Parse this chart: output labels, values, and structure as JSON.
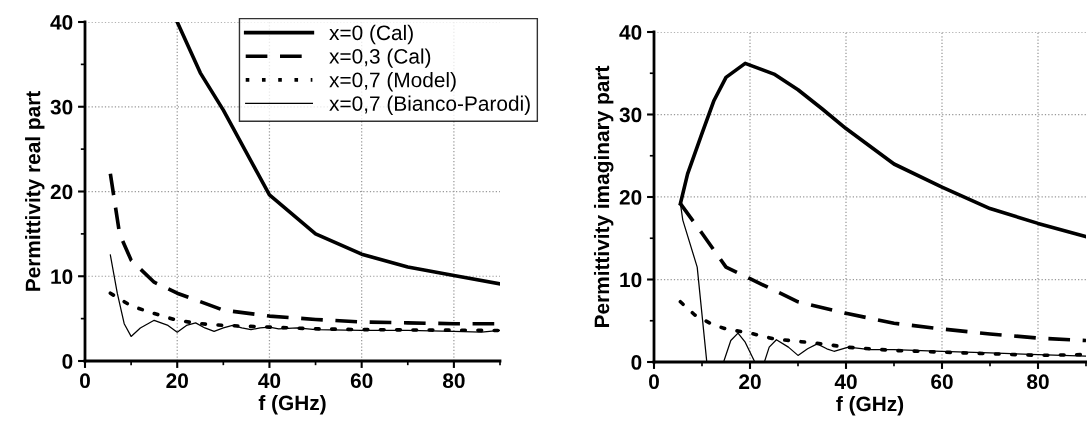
{
  "chart_data": [
    {
      "type": "line",
      "xlabel": "f (GHz)",
      "ylabel": "Permittivity real part",
      "xlim": [
        0,
        90
      ],
      "ylim": [
        0,
        40
      ],
      "xticks": [
        0,
        20,
        40,
        60,
        80
      ],
      "yticks": [
        0,
        10,
        20,
        30,
        40
      ],
      "grid": true,
      "legend": "top right",
      "marker": "none",
      "series": [
        {
          "name": "x=0 (Cal)",
          "color": "#000000",
          "line_style": "solid",
          "x": [
            20,
            25,
            30,
            40,
            50,
            60,
            70,
            80,
            90
          ],
          "values": [
            40,
            34,
            29.6,
            19.6,
            15,
            12.6,
            11.1,
            10.1,
            9.1
          ]
        },
        {
          "name": "x=0,3 (Cal)",
          "color": "#000000",
          "line_style": "dashed",
          "x": [
            5.5,
            7.5,
            10,
            15,
            20,
            30,
            40,
            50,
            60,
            70,
            80,
            90
          ],
          "values": [
            22.1,
            15,
            11.9,
            9.3,
            8.0,
            6.0,
            5.3,
            4.9,
            4.6,
            4.5,
            4.4,
            4.4
          ]
        },
        {
          "name": "x=0,7 (Model)",
          "color": "#000000",
          "line_style": "dotted",
          "x": [
            5.5,
            10,
            15,
            20,
            25,
            30,
            40,
            50,
            60,
            90
          ],
          "values": [
            8.0,
            6.5,
            5.6,
            4.8,
            4.4,
            4.2,
            4.0,
            3.8,
            3.7,
            3.6
          ]
        },
        {
          "name": "x=0,7 (Bianco-Parodi)",
          "color": "#000000",
          "line_style": "solid",
          "x": [
            5.5,
            7,
            8.5,
            10,
            12,
            15,
            18,
            20,
            22,
            24,
            26,
            28,
            30,
            32,
            34,
            36,
            38,
            40,
            42,
            46,
            50,
            60,
            70,
            80,
            86,
            90
          ],
          "values": [
            12.5,
            8,
            4.4,
            2.9,
            3.9,
            4.8,
            4.2,
            3.4,
            4.2,
            4.5,
            3.9,
            3.5,
            3.9,
            4.2,
            3.9,
            3.7,
            3.9,
            4.0,
            3.8,
            3.9,
            3.7,
            3.6,
            3.6,
            3.5,
            3.4,
            3.6
          ]
        }
      ]
    },
    {
      "type": "line",
      "xlabel": "f (GHz)",
      "ylabel": "Permittivity imaginary part",
      "xlim": [
        0,
        90
      ],
      "ylim": [
        0,
        40
      ],
      "xticks": [
        0,
        20,
        40,
        60,
        80
      ],
      "yticks": [
        0,
        10,
        20,
        30,
        40
      ],
      "grid": true,
      "marker": "none",
      "series": [
        {
          "color": "#000000",
          "line_style": "solid",
          "x": [
            5.5,
            7,
            10,
            12.5,
            15,
            19,
            25,
            30,
            35,
            40,
            50,
            60,
            70,
            80,
            90
          ],
          "values": [
            19.2,
            22.8,
            27.7,
            31.7,
            34.5,
            36.2,
            34.9,
            33.0,
            30.7,
            28.3,
            24.0,
            21.2,
            18.6,
            16.8,
            15.2
          ]
        },
        {
          "color": "#000000",
          "line_style": "dashed",
          "x": [
            5.5,
            10,
            15,
            20,
            30,
            40,
            50,
            60,
            70,
            80,
            90
          ],
          "values": [
            19.2,
            15.6,
            11.5,
            10.1,
            7.3,
            5.9,
            4.7,
            4.0,
            3.4,
            2.9,
            2.6
          ]
        },
        {
          "color": "#000000",
          "line_style": "dotted",
          "x": [
            5.5,
            8.5,
            12,
            15,
            20,
            25,
            30,
            35,
            40,
            50,
            60,
            70,
            80,
            90
          ],
          "values": [
            7.3,
            5.7,
            4.6,
            4.0,
            3.5,
            2.8,
            2.5,
            2.2,
            1.8,
            1.4,
            1.2,
            1.0,
            0.8,
            0.9
          ]
        },
        {
          "color": "#000000",
          "line_style": "solid",
          "x": [
            5.5,
            6,
            9,
            11,
            12.5,
            14.5,
            16,
            17.5,
            19,
            21,
            22,
            23,
            24,
            25.5,
            28,
            30,
            32,
            34,
            36,
            37.5,
            40.5,
            45,
            50,
            60,
            70,
            80,
            90
          ],
          "values": [
            19.2,
            17.2,
            11.5,
            0,
            null,
            0,
            2.6,
            3.5,
            2.4,
            0,
            null,
            0,
            1.8,
            2.7,
            1.8,
            0.8,
            1.6,
            2.2,
            1.6,
            1.3,
            1.8,
            1.5,
            1.5,
            1.3,
            1.1,
            0.9,
            0.7
          ]
        }
      ]
    }
  ]
}
